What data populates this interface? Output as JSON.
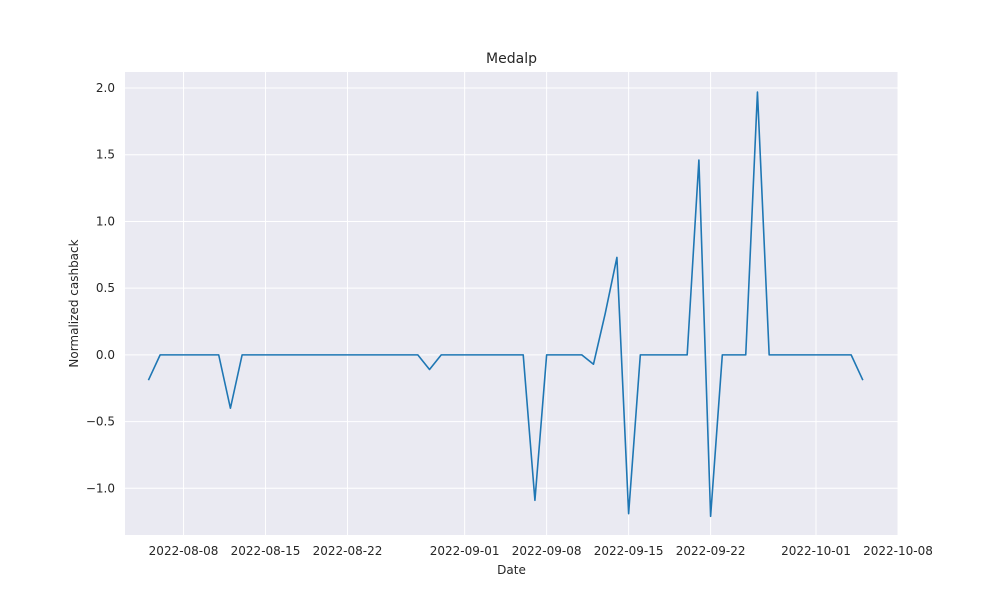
{
  "chart_data": {
    "type": "line",
    "title": "Medalp",
    "xlabel": "Date",
    "ylabel": "Normalized cashback",
    "xlim": [
      "2022-08-03",
      "2022-10-08"
    ],
    "ylim": [
      -1.35,
      2.12
    ],
    "x_ticks": [
      "2022-08-08",
      "2022-08-15",
      "2022-08-22",
      "2022-09-01",
      "2022-09-08",
      "2022-09-15",
      "2022-09-22",
      "2022-10-01",
      "2022-10-08"
    ],
    "y_ticks": [
      -1.0,
      -0.5,
      0.0,
      0.5,
      1.0,
      1.5,
      2.0
    ],
    "y_tick_labels": [
      "−1.0",
      "−0.5",
      "0.0",
      "0.5",
      "1.0",
      "1.5",
      "2.0"
    ],
    "grid": true,
    "line_color": "#1f77b4",
    "background": "#eaeaf2",
    "series": [
      {
        "x": [
          "2022-08-05",
          "2022-08-06",
          "2022-08-07",
          "2022-08-08",
          "2022-08-09",
          "2022-08-10",
          "2022-08-11",
          "2022-08-12",
          "2022-08-13",
          "2022-08-14",
          "2022-08-15",
          "2022-08-16",
          "2022-08-17",
          "2022-08-18",
          "2022-08-19",
          "2022-08-20",
          "2022-08-21",
          "2022-08-22",
          "2022-08-23",
          "2022-08-24",
          "2022-08-25",
          "2022-08-26",
          "2022-08-27",
          "2022-08-28",
          "2022-08-29",
          "2022-08-30",
          "2022-08-31",
          "2022-09-01",
          "2022-09-02",
          "2022-09-03",
          "2022-09-04",
          "2022-09-05",
          "2022-09-06",
          "2022-09-07",
          "2022-09-08",
          "2022-09-09",
          "2022-09-10",
          "2022-09-11",
          "2022-09-12",
          "2022-09-13",
          "2022-09-14",
          "2022-09-15",
          "2022-09-16",
          "2022-09-17",
          "2022-09-18",
          "2022-09-19",
          "2022-09-20",
          "2022-09-21",
          "2022-09-22",
          "2022-09-23",
          "2022-09-24",
          "2022-09-25",
          "2022-09-26",
          "2022-09-27",
          "2022-09-28",
          "2022-09-29",
          "2022-09-30",
          "2022-10-01",
          "2022-10-02",
          "2022-10-03",
          "2022-10-04",
          "2022-10-05"
        ],
        "values": [
          -0.19,
          0.0,
          0.0,
          0.0,
          0.0,
          0.0,
          0.0,
          -0.4,
          0.0,
          0.0,
          0.0,
          0.0,
          0.0,
          0.0,
          0.0,
          0.0,
          0.0,
          0.0,
          0.0,
          0.0,
          0.0,
          0.0,
          0.0,
          0.0,
          -0.11,
          0.0,
          0.0,
          0.0,
          0.0,
          0.0,
          0.0,
          0.0,
          0.0,
          -1.09,
          0.0,
          0.0,
          0.0,
          0.0,
          -0.07,
          0.31,
          0.73,
          -1.19,
          0.0,
          0.0,
          0.0,
          0.0,
          0.0,
          1.46,
          -1.21,
          0.0,
          0.0,
          0.0,
          1.97,
          0.0,
          0.0,
          0.0,
          0.0,
          0.0,
          0.0,
          0.0,
          0.0,
          -0.19
        ]
      }
    ]
  }
}
